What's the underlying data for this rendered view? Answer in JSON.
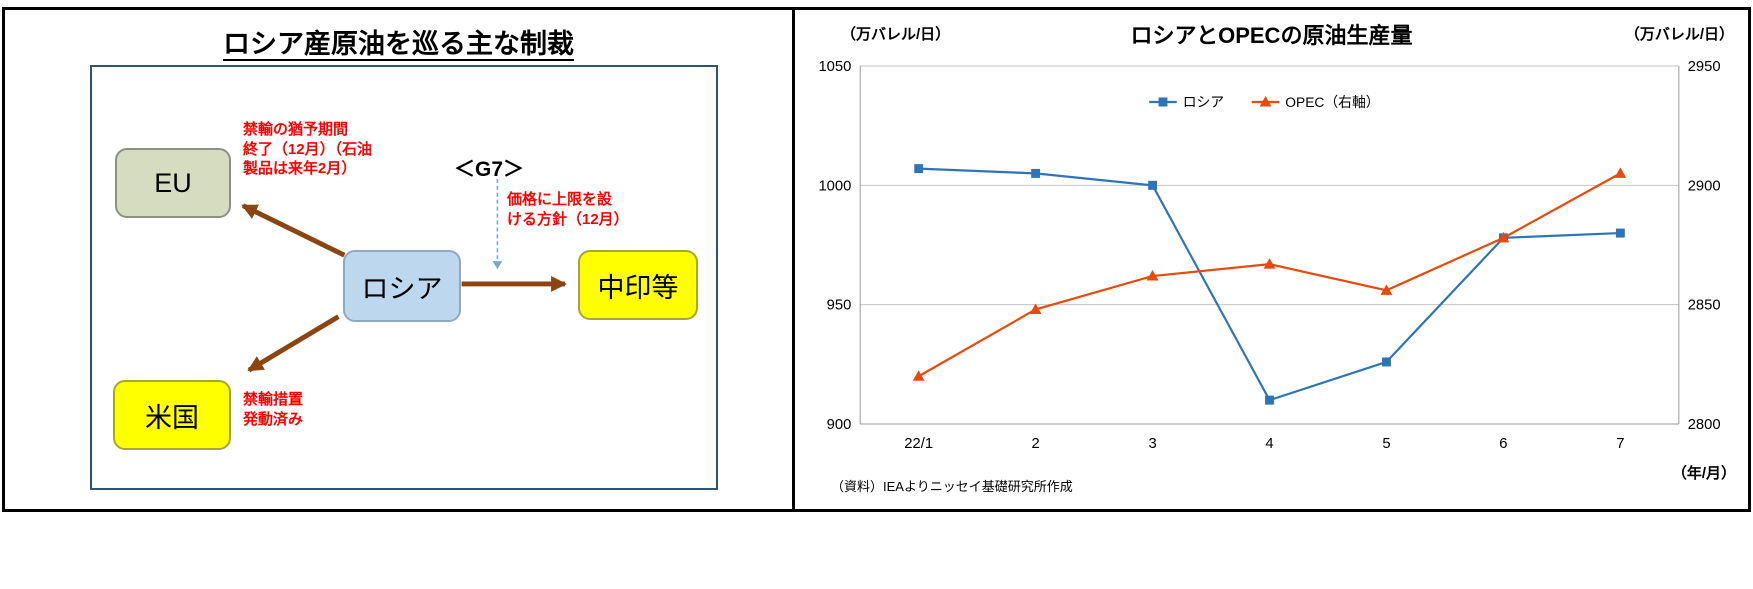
{
  "left_panel": {
    "title": "ロシア産原油を巡る主な制裁",
    "nodes": {
      "eu": "EU",
      "russia": "ロシア",
      "china_india": "中印等",
      "usa": "米国"
    },
    "annotations": {
      "eu_note": "禁輸の猶予期間\n終了（12月）（石油\n製品は来年2月）",
      "g7_label": "＜G7＞",
      "g7_note": "価格に上限を設\nける方針（12月）",
      "usa_note": "禁輸措置\n発動済み"
    }
  },
  "right_panel": {
    "title": "ロシアとOPECの原油生産量",
    "left_axis_unit": "（万バレル/日）",
    "right_axis_unit": "（万バレル/日）",
    "x_axis_label": "（年/月）",
    "source": "（資料）IEAよりニッセイ基礎研究所作成"
  },
  "chart_data": {
    "type": "line",
    "title": "ロシアとOPECの原油生産量",
    "categories": [
      "22/1",
      "2",
      "3",
      "4",
      "5",
      "6",
      "7"
    ],
    "series": [
      {
        "name": "ロシア",
        "axis": "left",
        "marker": "square",
        "color": "#2E75B6",
        "values": [
          1007,
          1005,
          1000,
          910,
          926,
          978,
          980
        ]
      },
      {
        "name": "OPEC（右軸）",
        "axis": "right",
        "marker": "triangle",
        "color": "#E8490C",
        "values": [
          2820,
          2848,
          2862,
          2867,
          2856,
          2878,
          2905
        ]
      }
    ],
    "left_axis": {
      "min": 900,
      "max": 1050,
      "ticks": [
        1050,
        1000,
        950,
        900
      ]
    },
    "right_axis": {
      "min": 2800,
      "max": 2950,
      "ticks": [
        2950,
        2900,
        2850,
        2800
      ]
    },
    "grid": true,
    "legend_position": "top"
  },
  "colors": {
    "note-red": "#FF0000",
    "arrow-brown": "#8B4513",
    "g7-arrow-blue": "#7BA7D7",
    "frame-border": "#2F5373",
    "eu-fill": "#D6DCC0",
    "russia-fill": "#BDD7EE",
    "yellow-fill": "#FFFF00"
  }
}
